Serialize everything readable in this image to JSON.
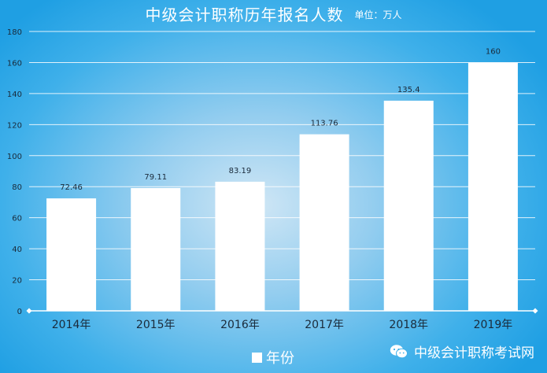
{
  "chart_data": {
    "type": "bar",
    "title": "中级会计职称历年报名人数",
    "subtitle": "单位：万人",
    "categories": [
      "2014年",
      "2015年",
      "2016年",
      "2017年",
      "2018年",
      "2019年"
    ],
    "values": [
      72.46,
      79.11,
      83.19,
      113.76,
      135.4,
      160
    ],
    "value_labels": [
      "72.46",
      "79.11",
      "83.19",
      "113.76",
      "135.4",
      "160"
    ],
    "series": [
      {
        "name": "年份",
        "values": [
          72.46,
          79.11,
          83.19,
          113.76,
          135.4,
          160
        ]
      }
    ],
    "ylim": [
      0,
      180
    ],
    "yticks": [
      0,
      20,
      40,
      60,
      80,
      100,
      120,
      140,
      160,
      180
    ],
    "grid": true,
    "legend": "bottom-center",
    "colors": {
      "bar": "#ffffff",
      "gridline": "#ffffff",
      "text": "#1a2a3a"
    }
  },
  "watermark": {
    "text": "中级会计职称考试网",
    "icon": "wechat-icon"
  }
}
